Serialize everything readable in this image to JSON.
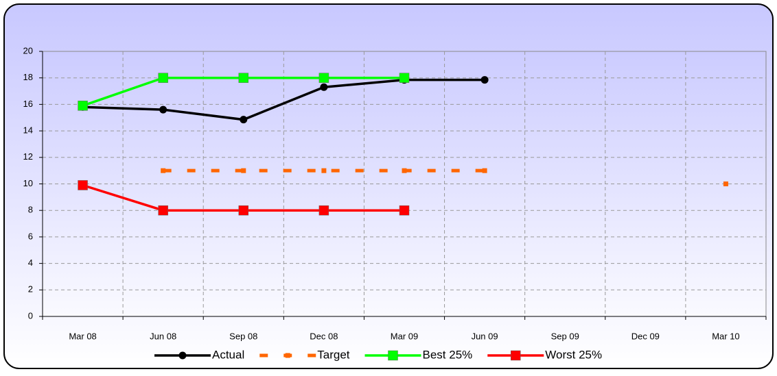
{
  "chart_data": {
    "type": "line",
    "categories": [
      "Mar 08",
      "Jun 08",
      "Sep 08",
      "Dec 08",
      "Mar 09",
      "Jun 09",
      "Sep 09",
      "Dec 09",
      "Mar 10"
    ],
    "series": [
      {
        "name": "Actual",
        "color": "#000000",
        "marker": "circle",
        "dashed": false,
        "values": [
          15.8,
          15.6,
          14.85,
          17.3,
          17.85,
          17.85,
          null,
          null,
          null
        ]
      },
      {
        "name": "Target",
        "color": "#ff6600",
        "marker": "small-square",
        "dashed": true,
        "values": [
          null,
          11,
          11,
          11,
          11,
          11,
          null,
          null,
          10
        ]
      },
      {
        "name": "Best 25%",
        "color": "#00ff00",
        "marker": "square",
        "dashed": false,
        "values": [
          15.9,
          18,
          18,
          18,
          18,
          null,
          null,
          null,
          null
        ]
      },
      {
        "name": "Worst 25%",
        "color": "#ff0000",
        "marker": "square",
        "dashed": false,
        "values": [
          9.9,
          8,
          8,
          8,
          8,
          null,
          null,
          null,
          null
        ]
      }
    ],
    "ylim": [
      0,
      20
    ],
    "yticks": [
      0,
      2,
      4,
      6,
      8,
      10,
      12,
      14,
      16,
      18,
      20
    ],
    "grid": true,
    "legend": "bottom"
  }
}
